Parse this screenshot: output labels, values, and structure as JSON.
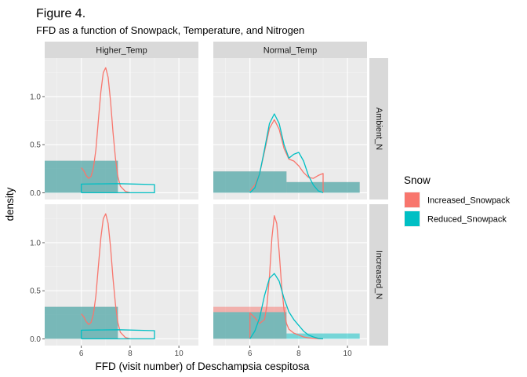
{
  "chart_data": {
    "type": "histogram+density",
    "title": "Figure 4.",
    "subtitle": "FFD as a function of Snowpack, Temperature, and Nitrogen",
    "xlabel": "FFD (visit number) of Deschampsia cespitosa",
    "ylabel": "density",
    "xlim": [
      4.5,
      10.8
    ],
    "ylim": [
      -0.07,
      1.4
    ],
    "x_ticks": [
      6,
      8,
      10
    ],
    "x_tick_labels": [
      "6",
      "8",
      "10"
    ],
    "y_ticks": [
      0,
      0.5,
      1.0
    ],
    "y_tick_labels": [
      "0.0",
      "0.5",
      "1.0"
    ],
    "columns": [
      "Higher_Temp",
      "Normal_Temp"
    ],
    "rows": [
      "Ambient_N",
      "Increased_N"
    ],
    "legend": {
      "title": "Snow",
      "position": "right",
      "entries": [
        {
          "label": "Increased_Snowpack",
          "color": "#F8766D"
        },
        {
          "label": "Reduced_Snowpack",
          "color": "#00BFC4"
        }
      ]
    },
    "grid": true,
    "panels": [
      {
        "column": "Higher_Temp",
        "row": "Ambient_N",
        "histograms": [
          {
            "series": "Increased_Snowpack",
            "bins": [
              {
                "x0": 4.5,
                "x1": 7.5,
                "density": 0.333
              }
            ]
          },
          {
            "series": "Reduced_Snowpack",
            "bins": [
              {
                "x0": 4.5,
                "x1": 7.5,
                "density": 0.333
              }
            ]
          }
        ],
        "densities": [
          {
            "series": "Increased_Snowpack",
            "x": [
              6.0,
              6.1,
              6.2,
              6.3,
              6.4,
              6.5,
              6.6,
              6.7,
              6.8,
              6.9,
              7.0,
              7.1,
              7.2,
              7.3,
              7.4,
              7.5,
              7.6,
              7.8,
              8.0
            ],
            "y": [
              0.26,
              0.23,
              0.18,
              0.15,
              0.17,
              0.26,
              0.45,
              0.75,
              1.05,
              1.25,
              1.3,
              1.2,
              0.95,
              0.63,
              0.36,
              0.17,
              0.07,
              0.015,
              0.0
            ]
          },
          {
            "series": "Reduced_Snowpack",
            "x": [
              6.0,
              6.0,
              7.5,
              9.0,
              9.0,
              7.5,
              6.0
            ],
            "y": [
              0.0,
              0.09,
              0.095,
              0.085,
              0.0,
              0.0,
              0.0
            ]
          }
        ]
      },
      {
        "column": "Normal_Temp",
        "row": "Ambient_N",
        "histograms": [
          {
            "series": "Increased_Snowpack",
            "bins": [
              {
                "x0": 4.5,
                "x1": 7.5,
                "density": 0.222
              },
              {
                "x0": 7.5,
                "x1": 10.5,
                "density": 0.111
              }
            ]
          },
          {
            "series": "Reduced_Snowpack",
            "bins": [
              {
                "x0": 4.5,
                "x1": 7.5,
                "density": 0.222
              },
              {
                "x0": 7.5,
                "x1": 10.5,
                "density": 0.111
              }
            ]
          }
        ],
        "densities": [
          {
            "series": "Increased_Snowpack",
            "x": [
              6.0,
              6.2,
              6.4,
              6.6,
              6.8,
              7.0,
              7.2,
              7.4,
              7.6,
              7.8,
              8.0,
              8.2,
              8.4,
              8.6,
              8.8,
              9.0,
              9.0
            ],
            "y": [
              0.02,
              0.08,
              0.2,
              0.43,
              0.67,
              0.76,
              0.66,
              0.46,
              0.35,
              0.33,
              0.28,
              0.21,
              0.16,
              0.15,
              0.18,
              0.2,
              0.0
            ]
          },
          {
            "series": "Reduced_Snowpack",
            "x": [
              6.0,
              6.2,
              6.4,
              6.6,
              6.8,
              7.0,
              7.2,
              7.4,
              7.6,
              7.8,
              8.0,
              8.2,
              8.4,
              8.6,
              8.8,
              9.0
            ],
            "y": [
              0.0,
              0.05,
              0.2,
              0.45,
              0.72,
              0.82,
              0.72,
              0.5,
              0.36,
              0.4,
              0.42,
              0.33,
              0.18,
              0.08,
              0.02,
              0.0
            ]
          }
        ]
      },
      {
        "column": "Higher_Temp",
        "row": "Increased_N",
        "histograms": [
          {
            "series": "Increased_Snowpack",
            "bins": [
              {
                "x0": 4.5,
                "x1": 7.5,
                "density": 0.333
              }
            ]
          },
          {
            "series": "Reduced_Snowpack",
            "bins": [
              {
                "x0": 4.5,
                "x1": 7.5,
                "density": 0.333
              }
            ]
          }
        ],
        "densities": [
          {
            "series": "Increased_Snowpack",
            "x": [
              6.0,
              6.1,
              6.2,
              6.3,
              6.4,
              6.5,
              6.6,
              6.7,
              6.8,
              6.9,
              7.0,
              7.1,
              7.2,
              7.3,
              7.4,
              7.5,
              7.6,
              7.8,
              8.0
            ],
            "y": [
              0.26,
              0.23,
              0.18,
              0.15,
              0.17,
              0.26,
              0.45,
              0.75,
              1.05,
              1.25,
              1.3,
              1.2,
              0.95,
              0.63,
              0.36,
              0.17,
              0.07,
              0.015,
              0.0
            ]
          },
          {
            "series": "Reduced_Snowpack",
            "x": [
              6.0,
              6.0,
              7.5,
              9.0,
              9.0,
              7.5,
              6.0
            ],
            "y": [
              0.0,
              0.09,
              0.095,
              0.085,
              0.0,
              0.0,
              0.0
            ]
          }
        ]
      },
      {
        "column": "Normal_Temp",
        "row": "Increased_N",
        "histograms": [
          {
            "series": "Increased_Snowpack",
            "bins": [
              {
                "x0": 4.5,
                "x1": 7.5,
                "density": 0.333
              }
            ]
          },
          {
            "series": "Reduced_Snowpack",
            "bins": [
              {
                "x0": 4.5,
                "x1": 7.5,
                "density": 0.278
              },
              {
                "x0": 7.5,
                "x1": 10.5,
                "density": 0.056
              }
            ]
          }
        ],
        "densities": [
          {
            "series": "Increased_Snowpack",
            "x": [
              6.0,
              6.0,
              6.2,
              6.4,
              6.6,
              6.7,
              6.8,
              6.9,
              7.0,
              7.1,
              7.2,
              7.3,
              7.4,
              7.5,
              7.6,
              7.8,
              8.0,
              8.2,
              8.4,
              8.6,
              8.8,
              9.0
            ],
            "y": [
              0.0,
              0.27,
              0.22,
              0.16,
              0.2,
              0.35,
              0.65,
              1.05,
              1.28,
              1.2,
              0.9,
              0.55,
              0.3,
              0.16,
              0.1,
              0.06,
              0.04,
              0.02,
              0.01,
              0.005,
              0.002,
              0.0
            ]
          },
          {
            "series": "Reduced_Snowpack",
            "x": [
              6.0,
              6.2,
              6.4,
              6.6,
              6.8,
              7.0,
              7.2,
              7.4,
              7.6,
              7.8,
              8.0,
              8.2,
              8.4,
              8.6,
              8.8,
              9.0
            ],
            "y": [
              0.0,
              0.08,
              0.22,
              0.45,
              0.63,
              0.68,
              0.6,
              0.42,
              0.28,
              0.2,
              0.14,
              0.08,
              0.04,
              0.02,
              0.005,
              0.0
            ]
          }
        ]
      }
    ]
  }
}
